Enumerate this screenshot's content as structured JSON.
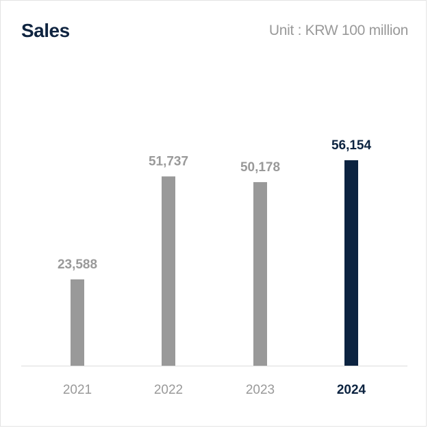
{
  "header": {
    "title": "Sales",
    "unit": "Unit : KRW 100 million"
  },
  "colors": {
    "bar": "#999999",
    "highlight": "#0c2340",
    "label": "#999999",
    "highlight_label": "#0c2340",
    "axis": "#dcdcdc"
  },
  "chart_data": {
    "type": "bar",
    "title": "Sales",
    "categories": [
      "2021",
      "2022",
      "2023",
      "2024"
    ],
    "values": [
      23588,
      51737,
      50178,
      56154
    ],
    "value_labels": [
      "23,588",
      "51,737",
      "50,178",
      "56,154"
    ],
    "highlight_index": 3,
    "xlabel": "",
    "ylabel": "",
    "ylim": [
      0,
      56154
    ],
    "grid": false,
    "legend": "none"
  }
}
